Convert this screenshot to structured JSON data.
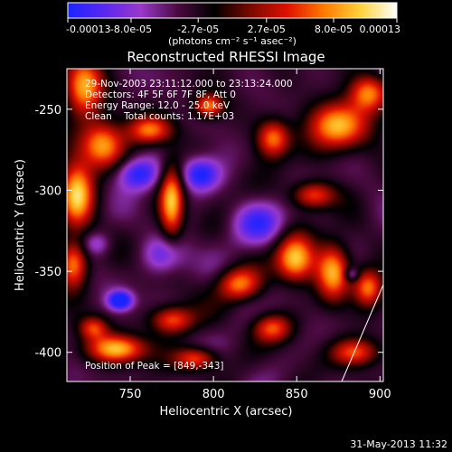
{
  "chart_data": {
    "type": "heatmap",
    "title": "Reconstructed RHESSI Image",
    "xlabel": "Heliocentric X (arcsec)",
    "ylabel": "Heliocentric Y (arcsec)",
    "xlim": [
      712,
      902
    ],
    "ylim": [
      -418,
      -225
    ],
    "x_ticks": [
      750,
      800,
      850,
      900
    ],
    "x_tick_labels": [
      "750",
      "800",
      "850",
      "900"
    ],
    "y_ticks": [
      -250,
      -300,
      -350,
      -400
    ],
    "y_tick_labels": [
      "-250",
      "-300",
      "-350",
      "-400"
    ],
    "colorbar": {
      "range": [
        -0.00013,
        0.00013
      ],
      "ticks": [
        -0.00013,
        -8e-05,
        -2.7e-05,
        2.7e-05,
        8e-05,
        0.00013
      ],
      "tick_labels": [
        "-0.00013",
        "-8.0e-05",
        "-2.7e-05",
        "2.7e-05",
        "8.0e-05",
        "0.00013"
      ],
      "unit_label": "(photons cm⁻² s⁻¹ asec⁻²)",
      "colormap": [
        "#1a24ff",
        "#5a28f0",
        "#9a38c8",
        "#4a0a40",
        "#000000",
        "#7a0800",
        "#e01000",
        "#ff7a00",
        "#ffd23a",
        "#ffffff"
      ]
    },
    "annotations": {
      "time_range": "29-Nov-2003 23:11:12.000 to 23:13:24.000",
      "detectors": "Detectors: 4F 5F 6F 7F 8F, Att 0",
      "energy_range": "Energy Range: 12.0 - 25.0 keV",
      "method_counts": "Clean    Total counts: 1.17E+03",
      "peak": "Position of Peak = [849,-343]"
    },
    "peak_position": [
      849,
      -343
    ],
    "bright_sources": [
      {
        "x": 722,
        "y": -237,
        "intensity": 0.95,
        "sx": 8,
        "sy": 12
      },
      {
        "x": 733,
        "y": -272,
        "intensity": 0.9,
        "sx": 9,
        "sy": 10
      },
      {
        "x": 718,
        "y": -302,
        "intensity": 1.0,
        "sx": 7,
        "sy": 14
      },
      {
        "x": 716,
        "y": -345,
        "intensity": 0.85,
        "sx": 6,
        "sy": 10
      },
      {
        "x": 762,
        "y": -263,
        "intensity": 0.75,
        "sx": 9,
        "sy": 6
      },
      {
        "x": 775,
        "y": -307,
        "intensity": 0.95,
        "sx": 5,
        "sy": 16
      },
      {
        "x": 797,
        "y": -248,
        "intensity": 0.8,
        "sx": 6,
        "sy": 5
      },
      {
        "x": 836,
        "y": -268,
        "intensity": 0.8,
        "sx": 7,
        "sy": 8
      },
      {
        "x": 875,
        "y": -260,
        "intensity": 0.95,
        "sx": 12,
        "sy": 10
      },
      {
        "x": 893,
        "y": -240,
        "intensity": 0.85,
        "sx": 8,
        "sy": 8
      },
      {
        "x": 860,
        "y": -303,
        "intensity": 0.75,
        "sx": 9,
        "sy": 6
      },
      {
        "x": 849,
        "y": -343,
        "intensity": 1.0,
        "sx": 8,
        "sy": 10
      },
      {
        "x": 872,
        "y": -350,
        "intensity": 0.9,
        "sx": 7,
        "sy": 12
      },
      {
        "x": 893,
        "y": -360,
        "intensity": 0.8,
        "sx": 6,
        "sy": 8
      },
      {
        "x": 815,
        "y": -358,
        "intensity": 0.75,
        "sx": 9,
        "sy": 7
      },
      {
        "x": 835,
        "y": -385,
        "intensity": 0.65,
        "sx": 8,
        "sy": 6
      },
      {
        "x": 742,
        "y": -398,
        "intensity": 0.95,
        "sx": 12,
        "sy": 6
      },
      {
        "x": 775,
        "y": -380,
        "intensity": 0.75,
        "sx": 9,
        "sy": 6
      },
      {
        "x": 790,
        "y": -404,
        "intensity": 0.75,
        "sx": 9,
        "sy": 5
      },
      {
        "x": 885,
        "y": -400,
        "intensity": 0.7,
        "sx": 10,
        "sy": 6
      },
      {
        "x": 728,
        "y": -385,
        "intensity": 0.6,
        "sx": 6,
        "sy": 5
      }
    ],
    "dark_sources": [
      {
        "x": 755,
        "y": -290,
        "intensity": 0.55,
        "sx": 9,
        "sy": 7
      },
      {
        "x": 792,
        "y": -290,
        "intensity": 0.6,
        "sx": 8,
        "sy": 7
      },
      {
        "x": 744,
        "y": -368,
        "intensity": 0.75,
        "sx": 5,
        "sy": 4
      },
      {
        "x": 827,
        "y": -320,
        "intensity": 0.4,
        "sx": 12,
        "sy": 9
      },
      {
        "x": 770,
        "y": -340,
        "intensity": 0.4,
        "sx": 9,
        "sy": 8
      },
      {
        "x": 883,
        "y": -352,
        "intensity": 0.4,
        "sx": 3,
        "sy": 3
      },
      {
        "x": 730,
        "y": -333,
        "intensity": 0.3,
        "sx": 6,
        "sy": 5
      }
    ],
    "timestamp": "31-May-2013 11:32"
  }
}
